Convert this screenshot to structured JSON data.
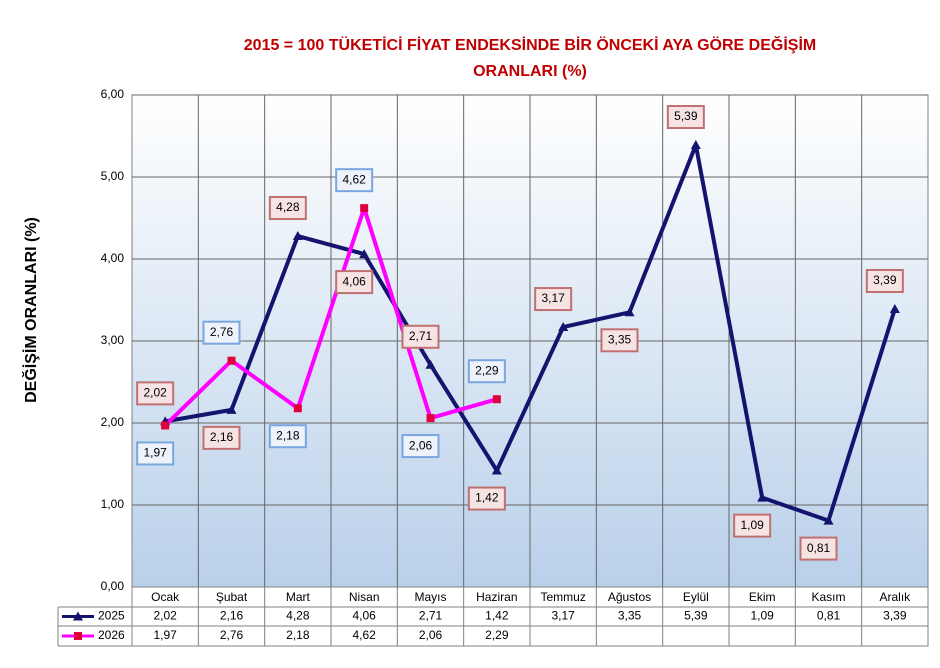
{
  "chart_data": {
    "type": "line",
    "title": "2015 = 100 TÜKETİCİ FİYAT ENDEKSİNDE BİR ÖNCEKİ AYA GÖRE DEĞİŞİM ORANLARI (%)",
    "y_label": "DEĞİŞİM ORANLARI (%)",
    "categories": [
      "Ocak",
      "Şubat",
      "Mart",
      "Nisan",
      "Mayıs",
      "Haziran",
      "Temmuz",
      "Ağustos",
      "Eylül",
      "Ekim",
      "Kasım",
      "Aralık"
    ],
    "series": [
      {
        "name": "2025",
        "color": "#14146e",
        "marker_color": "#14146e",
        "values": [
          2.02,
          2.16,
          4.28,
          4.06,
          2.71,
          1.42,
          3.17,
          3.35,
          5.39,
          1.09,
          0.81,
          3.39
        ],
        "value_labels": [
          "2,02",
          "2,16",
          "4,28",
          "4,06",
          "2,71",
          "1,42",
          "3,17",
          "3,35",
          "5,39",
          "1,09",
          "0,81",
          "3,39"
        ]
      },
      {
        "name": "2026",
        "color": "#ff00ff",
        "marker_color": "#e0003c",
        "values": [
          1.97,
          2.76,
          2.18,
          4.62,
          2.06,
          2.29,
          null,
          null,
          null,
          null,
          null,
          null
        ],
        "value_labels": [
          "1,97",
          "2,76",
          "2,18",
          "4,62",
          "2,06",
          "2,29",
          null,
          null,
          null,
          null,
          null,
          null
        ]
      }
    ],
    "ylim": [
      0,
      6
    ],
    "yticks": [
      {
        "value": 0,
        "label": "0,00"
      },
      {
        "value": 1,
        "label": "1,00"
      },
      {
        "value": 2,
        "label": "2,00"
      },
      {
        "value": 3,
        "label": "3,00"
      },
      {
        "value": 4,
        "label": "4,00"
      },
      {
        "value": 5,
        "label": "5,00"
      },
      {
        "value": 6,
        "label": "6,00"
      }
    ],
    "grid": true
  }
}
